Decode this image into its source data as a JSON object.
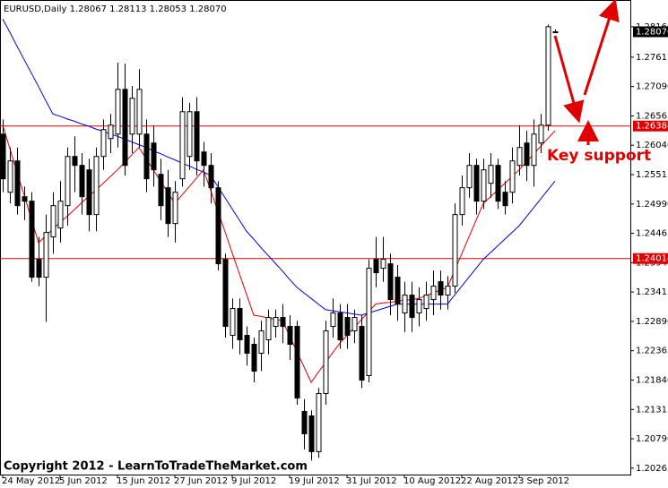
{
  "chart_data": {
    "type": "candlestick",
    "title": "EURUSD,Daily  1.28067 1.28113 1.28053 1.28070",
    "annotation": "Key support",
    "footer": "Copyright 2012 - LearnToTradeTheMarket.com",
    "categories": [
      "24 May 2012",
      null,
      null,
      null,
      null,
      null,
      null,
      null,
      "5 Jun 2012",
      null,
      null,
      null,
      null,
      null,
      null,
      null,
      "15 Jun 2012",
      null,
      null,
      null,
      null,
      null,
      null,
      null,
      "27 Jun 2012",
      null,
      null,
      null,
      null,
      null,
      null,
      null,
      "9 Jul 2012",
      null,
      null,
      null,
      null,
      null,
      null,
      null,
      "19 Jul 2012",
      null,
      null,
      null,
      null,
      null,
      null,
      null,
      "31 Jul 2012",
      null,
      null,
      null,
      null,
      null,
      null,
      null,
      "10 Aug 2012",
      null,
      null,
      null,
      null,
      null,
      null,
      null,
      "22 Aug 2012",
      null,
      null,
      null,
      null,
      null,
      null,
      null,
      "3 Sep 2012",
      null,
      null,
      null,
      null,
      null
    ],
    "ohlc": {
      "open": [
        1.2624,
        1.252,
        1.2576,
        1.2512,
        1.2504,
        1.24,
        1.2368,
        1.244,
        1.2456,
        1.2496,
        1.2584,
        1.2568,
        1.256,
        1.248,
        1.2584,
        1.2616,
        1.2624,
        1.2704,
        1.2624,
        1.2624,
        1.2624,
        1.2608,
        1.2552,
        1.2528,
        1.2464,
        1.2544,
        1.2584,
        1.2664,
        1.2592,
        1.2568,
        1.2528,
        1.24,
        1.2264,
        1.2312,
        1.2264,
        1.2248,
        1.2232,
        1.2256,
        1.228,
        1.2296,
        1.228,
        1.228,
        1.2128,
        1.212,
        1.2056,
        1.216,
        1.228,
        1.2304,
        1.2296,
        1.2272,
        1.228,
        1.2192,
        1.24,
        1.2384,
        1.2392,
        1.2368,
        1.2304,
        1.2336,
        1.2304,
        1.2312,
        1.2328,
        1.236,
        1.2336,
        1.2352,
        1.248,
        1.2528,
        1.2568,
        1.2504,
        1.2536,
        1.2568,
        1.252,
        1.252,
        1.2568,
        1.2608,
        1.2568,
        1.2608,
        1.264,
        1.28067
      ],
      "high": [
        1.265,
        1.26,
        1.26,
        1.253,
        1.252,
        1.244,
        1.248,
        1.252,
        1.254,
        1.26,
        1.262,
        1.259,
        1.258,
        1.26,
        1.265,
        1.266,
        1.2752,
        1.275,
        1.271,
        1.274,
        1.265,
        1.264,
        1.258,
        1.256,
        1.254,
        1.269,
        1.268,
        1.269,
        1.261,
        1.259,
        1.254,
        1.241,
        1.233,
        1.233,
        1.228,
        1.226,
        1.229,
        1.231,
        1.231,
        1.232,
        1.23,
        1.229,
        1.215,
        1.213,
        1.217,
        1.229,
        1.233,
        1.232,
        1.232,
        1.231,
        1.23,
        1.24,
        1.244,
        1.244,
        1.241,
        1.239,
        1.236,
        1.236,
        1.235,
        1.236,
        1.238,
        1.238,
        1.237,
        1.25,
        1.255,
        1.259,
        1.258,
        1.258,
        1.259,
        1.258,
        1.254,
        1.26,
        1.264,
        1.263,
        1.265,
        1.266,
        1.282,
        1.28113
      ],
      "low": [
        1.252,
        1.25,
        1.248,
        1.247,
        1.236,
        1.2352,
        1.2288,
        1.241,
        1.243,
        1.246,
        1.252,
        1.248,
        1.245,
        1.245,
        1.256,
        1.259,
        1.26,
        1.255,
        1.259,
        1.26,
        1.252,
        1.253,
        1.247,
        1.244,
        1.243,
        1.253,
        1.256,
        1.255,
        1.253,
        1.25,
        1.238,
        1.226,
        1.224,
        1.223,
        1.221,
        1.218,
        1.22,
        1.223,
        1.226,
        1.225,
        1.222,
        1.214,
        1.206,
        1.204,
        1.2045,
        1.214,
        1.226,
        1.224,
        1.224,
        1.225,
        1.217,
        1.218,
        1.235,
        1.236,
        1.23,
        1.229,
        1.227,
        1.227,
        1.228,
        1.229,
        1.23,
        1.231,
        1.231,
        1.234,
        1.246,
        1.251,
        1.248,
        1.249,
        1.251,
        1.249,
        1.248,
        1.25,
        1.255,
        1.254,
        1.253,
        1.259,
        1.263,
        1.28053
      ],
      "close": [
        1.2544,
        1.2576,
        1.2496,
        1.2504,
        1.2368,
        1.2368,
        1.2448,
        1.2496,
        1.2504,
        1.2584,
        1.2568,
        1.2512,
        1.248,
        1.2584,
        1.2632,
        1.264,
        1.2704,
        1.2568,
        1.2688,
        1.2704,
        1.2544,
        1.256,
        1.2496,
        1.2464,
        1.252,
        1.2664,
        1.2664,
        1.2576,
        1.2568,
        1.2528,
        1.2392,
        1.228,
        1.2312,
        1.2256,
        1.2232,
        1.22,
        1.2272,
        1.2296,
        1.2296,
        1.228,
        1.2248,
        1.2152,
        1.2088,
        1.2056,
        1.216,
        1.2272,
        1.2304,
        1.2256,
        1.2264,
        1.2296,
        1.2184,
        1.2384,
        1.2376,
        1.24,
        1.2328,
        1.232,
        1.2336,
        1.2296,
        1.2328,
        1.2336,
        1.2352,
        1.2336,
        1.2352,
        1.248,
        1.2528,
        1.2568,
        1.2504,
        1.256,
        1.2568,
        1.2504,
        1.2496,
        1.2576,
        1.26,
        1.2568,
        1.2624,
        1.264,
        1.2816,
        1.2807
      ]
    },
    "moving_averages": [
      {
        "color": "#e00000",
        "values": [
          1.264,
          1.2598,
          1.2556,
          1.2514,
          1.2472,
          1.243,
          1.2442,
          1.2454,
          1.2466,
          1.2477,
          1.2489,
          1.2501,
          1.2513,
          1.2524,
          1.2536,
          1.2548,
          1.256,
          1.2573,
          1.2587,
          1.26,
          1.258,
          1.256,
          1.254,
          1.252,
          1.25,
          1.2515,
          1.253,
          1.2545,
          1.256,
          1.2523,
          1.2486,
          1.2449,
          1.2411,
          1.2374,
          1.2337,
          1.23,
          1.2298,
          1.2295,
          1.2293,
          1.229,
          1.2263,
          1.2235,
          1.2208,
          1.218,
          1.2198,
          1.2215,
          1.2233,
          1.225,
          1.2264,
          1.2278,
          1.2292,
          1.2306,
          1.232,
          1.2322,
          1.2323,
          1.2325,
          1.2327,
          1.2328,
          1.233,
          1.2335,
          1.234,
          1.2345,
          1.235,
          1.238,
          1.241,
          1.244,
          1.247,
          1.25,
          1.2512,
          1.2524,
          1.2536,
          1.2548,
          1.256,
          1.2574,
          1.2588,
          1.2602,
          1.2616,
          1.263
        ]
      },
      {
        "color": "#0000e0",
        "values": [
          1.283,
          1.2806,
          1.2781,
          1.2757,
          1.2733,
          1.2709,
          1.2684,
          1.266,
          1.2656,
          1.2651,
          1.2647,
          1.2642,
          1.2638,
          1.2633,
          1.2629,
          1.2624,
          1.262,
          1.2615,
          1.261,
          1.2605,
          1.26,
          1.2594,
          1.2589,
          1.2583,
          1.2578,
          1.2572,
          1.2567,
          1.2561,
          1.2556,
          1.255,
          1.253,
          1.251,
          1.249,
          1.247,
          1.245,
          1.2436,
          1.2421,
          1.2407,
          1.2393,
          1.2379,
          1.2364,
          1.235,
          1.234,
          1.233,
          1.232,
          1.231,
          1.2308,
          1.2306,
          1.2304,
          1.2302,
          1.23,
          1.2304,
          1.2308,
          1.2312,
          1.2316,
          1.232,
          1.232,
          1.232,
          1.232,
          1.232,
          1.232,
          1.232,
          1.232,
          1.2336,
          1.2352,
          1.2368,
          1.2384,
          1.24,
          1.2412,
          1.2424,
          1.2436,
          1.2448,
          1.246,
          1.2476,
          1.2492,
          1.2508,
          1.2524,
          1.254
        ]
      }
    ],
    "hlines": [
      1.26384,
      1.24014
    ],
    "hline_color": "#e00000",
    "last_price": {
      "value": 1.2807,
      "label": "1.28070"
    },
    "ylim": [
      1.2015,
      1.2851
    ],
    "yticks": [
      {
        "value": 1.2816,
        "label": "1.28160"
      },
      1.27615,
      {
        "value": 1.2709,
        "label": "1.27090"
      },
      1.26565,
      {
        "value": 1.2604,
        "label": "1.26040"
      },
      1.25515,
      {
        "value": 1.2499,
        "label": "1.24990"
      },
      1.24465,
      {
        "value": 1.2394,
        "label": "1.23940"
      },
      1.23415,
      {
        "value": 1.2289,
        "label": "1.22890"
      },
      1.22365,
      {
        "value": 1.2184,
        "label": "1.21840"
      },
      1.21315,
      {
        "value": 1.2079,
        "label": "1.20790"
      },
      1.20265
    ]
  }
}
